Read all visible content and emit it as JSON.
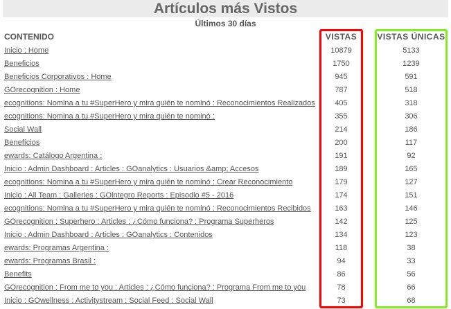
{
  "title": "Artículos más Vistos",
  "subtitle": "Últimos 30 días",
  "headers": {
    "content": "CONTENIDO",
    "views": "VISTAS",
    "unique": "VISTAS ÚNICAS"
  },
  "colors": {
    "views_highlight": "#ff0000",
    "unique_highlight": "#80f020"
  },
  "rows": [
    {
      "name": "Inicio : Home",
      "views": "10879",
      "unique": "5133"
    },
    {
      "name": "Beneficios",
      "views": "1750",
      "unique": "1239"
    },
    {
      "name": "Beneficios Corporativos : Home",
      "views": "945",
      "unique": "591"
    },
    {
      "name": "GOrecognition : Home",
      "views": "787",
      "unique": "518"
    },
    {
      "name": "ecognitions: Nomina a tu #SuperHero y mira quién te nominó : Reconocimientos Realizados",
      "views": "405",
      "unique": "318"
    },
    {
      "name": "ecognitions: Nomina a tu #SuperHero y mira quién te nominó :",
      "views": "355",
      "unique": "306"
    },
    {
      "name": "Social Wall",
      "views": "214",
      "unique": "186"
    },
    {
      "name": "Benefícios",
      "views": "200",
      "unique": "117"
    },
    {
      "name": "ewards: Catálogo Argentina :",
      "views": "191",
      "unique": "92"
    },
    {
      "name": "Inicio : Admin Dashboard : Articles : GOanalytics : Usuarios &amp; Accesos",
      "views": "189",
      "unique": "165"
    },
    {
      "name": "ecognitions: Nomina a tu #SuperHero y mira quién te nominó : Crear Reconocimiento",
      "views": "179",
      "unique": "127"
    },
    {
      "name": "Inicio : All Team : Galleries : GOintegro Reports : Episodio #5 - 2016",
      "views": "174",
      "unique": "151"
    },
    {
      "name": "ecognitions: Nomina a tu #SuperHero y mira quién te nominó : Reconocimientos Recibidos",
      "views": "163",
      "unique": "146"
    },
    {
      "name": "GOrecognition : Superhero : Articles : ¿Cómo funciona? : Programa Superheros",
      "views": "142",
      "unique": "125"
    },
    {
      "name": "Inicio : Admin Dashboard : Articles : GOanalytics : Contenidos",
      "views": "134",
      "unique": "123"
    },
    {
      "name": "ewards: Programas Argentina :",
      "views": "118",
      "unique": "38"
    },
    {
      "name": "ewards: Programas Brasil :",
      "views": "94",
      "unique": "33"
    },
    {
      "name": "Benefits",
      "views": "86",
      "unique": "56"
    },
    {
      "name": "GOrecognition : From me to you : Articles : ¿Cómo funciona? : Programa From me to you",
      "views": "78",
      "unique": "66"
    },
    {
      "name": "Inicio : GOwellness : Activitystream : Social Feed : Social Wall",
      "views": "73",
      "unique": "68"
    }
  ]
}
